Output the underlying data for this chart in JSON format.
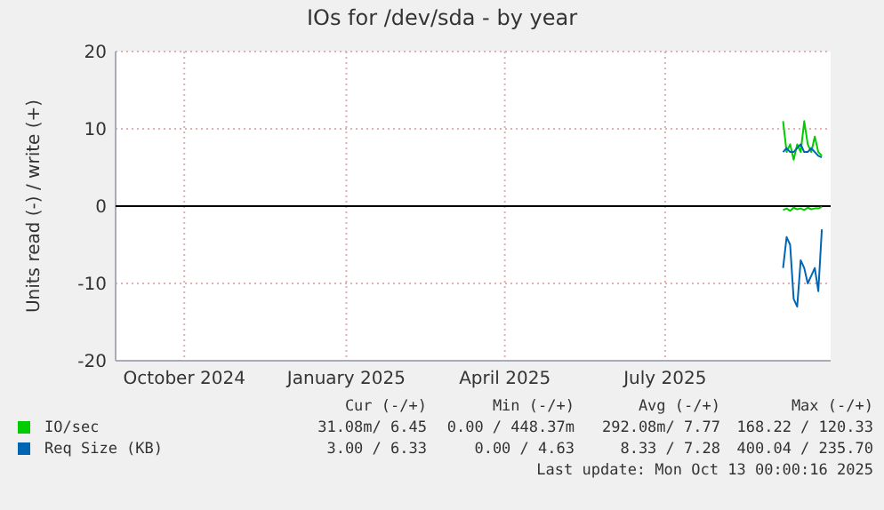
{
  "chart_data": {
    "type": "line",
    "title": "IOs for /dev/sda - by year",
    "ylabel": "Units read (-) / write (+)",
    "xlim": [
      "2024-08-23",
      "2025-10-03"
    ],
    "xticks": [
      {
        "value": "2024-10-01",
        "label": "October 2024"
      },
      {
        "value": "2025-01-01",
        "label": "January 2025"
      },
      {
        "value": "2025-04-01",
        "label": "April 2025"
      },
      {
        "value": "2025-07-01",
        "label": "July 2025"
      }
    ],
    "ylim": [
      -20,
      20
    ],
    "yticks": [
      -20,
      -10,
      0,
      10,
      20
    ],
    "grid": true,
    "legend": "bottom",
    "line_style": "solid",
    "x": [
      "2025-09-06",
      "2025-09-08",
      "2025-09-10",
      "2025-09-12",
      "2025-09-14",
      "2025-09-16",
      "2025-09-18",
      "2025-09-20",
      "2025-09-22",
      "2025-09-24",
      "2025-09-26",
      "2025-09-28"
    ],
    "series": [
      {
        "name": "IO/sec",
        "color": "#00cc00",
        "values": [
          11,
          7,
          8,
          6,
          8,
          7,
          11,
          8,
          7,
          9,
          7,
          6.5
        ]
      },
      {
        "color": "#00cc00",
        "values": [
          -0.5,
          -0.3,
          -0.6,
          -0.2,
          -0.4,
          -0.3,
          -0.5,
          -0.2,
          -0.4,
          -0.3,
          -0.3,
          -0.1
        ]
      },
      {
        "name": "Req Size (KB)",
        "color": "#0066b3",
        "values": [
          7,
          7.5,
          7,
          7,
          7.5,
          8,
          7,
          7,
          7.5,
          7,
          6.5,
          6.3
        ]
      },
      {
        "color": "#0066b3",
        "values": [
          -8,
          -4,
          -5,
          -12,
          -13,
          -7,
          -8,
          -10,
          -9,
          -8,
          -11,
          -3
        ]
      }
    ],
    "ref_lines": [
      {
        "axis": "y",
        "value": 0,
        "color": "#000000"
      }
    ],
    "annotations": [
      "Cur (-/+)",
      "Min (-/+)",
      "Avg (-/+)",
      "Max (-/+)",
      "31.08m/ 6.45",
      "0.00 / 448.37m",
      "292.08m/ 7.77",
      "168.22 / 120.33",
      "3.00 / 6.33",
      "0.00 / 4.63",
      "8.33 / 7.28",
      "400.04 / 235.70",
      "Last update: Mon Oct 13 00:00:16 2025"
    ]
  }
}
